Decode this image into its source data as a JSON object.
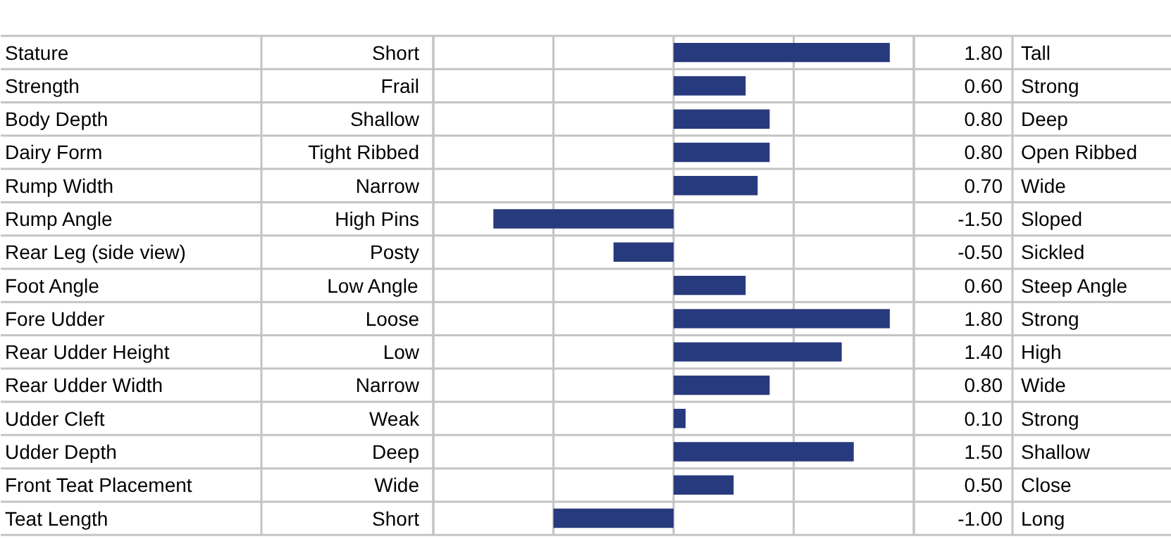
{
  "chart_data": {
    "type": "bar",
    "orientation": "horizontal",
    "color": "#283a7e",
    "categories": [
      "Stature",
      "Strength",
      "Body Depth",
      "Dairy Form",
      "Rump Width",
      "Rump Angle",
      "Rear Leg (side view)",
      "Foot Angle",
      "Fore Udder",
      "Rear Udder Height",
      "Rear Udder Width",
      "Udder Cleft",
      "Udder Depth",
      "Front Teat Placement",
      "Teat Length"
    ],
    "values": [
      1.8,
      0.6,
      0.8,
      0.8,
      0.7,
      -1.5,
      -0.5,
      0.6,
      1.8,
      1.4,
      0.8,
      0.1,
      1.5,
      0.5,
      -1.0
    ],
    "value_labels": [
      "1.80",
      "0.60",
      "0.80",
      "0.80",
      "0.70",
      "-1.50",
      "-0.50",
      "0.60",
      "1.80",
      "1.40",
      "0.80",
      "0.10",
      "1.50",
      "0.50",
      "-1.00"
    ],
    "xlim": [
      -2,
      2
    ],
    "xticks": [
      {
        "value": -2,
        "label": null
      },
      {
        "value": -1,
        "label": null
      },
      {
        "value": 0,
        "label": null
      },
      {
        "value": 1,
        "label": null
      },
      {
        "value": 2,
        "label": null
      }
    ],
    "grid": "x",
    "tick_labels": false,
    "annotations": [
      "Short",
      "Tall",
      "Frail",
      "Strong",
      "Shallow",
      "Deep",
      "Tight Ribbed",
      "Open Ribbed",
      "Narrow",
      "Wide",
      "High Pins",
      "Sloped",
      "Posty",
      "Sickled",
      "Low Angle",
      "Steep Angle",
      "Loose",
      "Strong",
      "Low",
      "High",
      "Narrow",
      "Wide",
      "Weak",
      "Strong",
      "Deep",
      "Shallow",
      "Wide",
      "Close",
      "Short",
      "Long"
    ]
  }
}
